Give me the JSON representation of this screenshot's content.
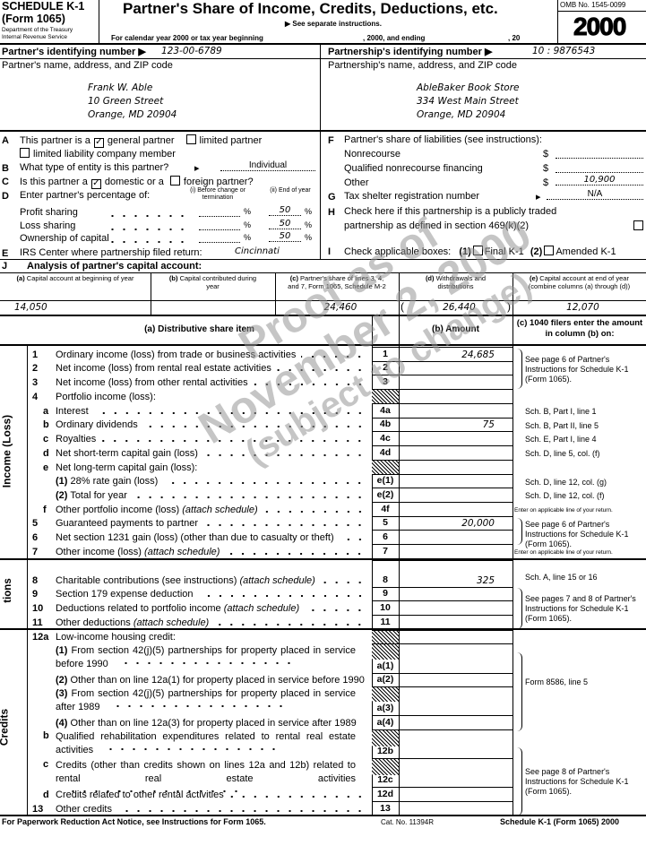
{
  "header": {
    "schedule": "SCHEDULE K-1",
    "form": "(Form 1065)",
    "dept1": "Department of the Treasury",
    "dept2": "Internal Revenue Service",
    "title": "Partner's Share of Income, Credits, Deductions, etc.",
    "see_instructions": "▶ See separate instructions.",
    "calendar_year": "For calendar year 2000 or tax year beginning",
    "and_ending": ", 2000, and ending",
    "year_suffix": ", 20",
    "omb": "OMB No. 1545-0099",
    "year": "2000"
  },
  "ids": {
    "partner_label": "Partner's identifying number ▶",
    "partner_value": "123-00-6789",
    "partnership_label": "Partnership's identifying number ▶",
    "partnership_value": "10 : 9876543"
  },
  "partner": {
    "label": "Partner's name, address, and ZIP code",
    "name": "Frank W. Able",
    "street": "10 Green Street",
    "city": "Orange, MD 20904"
  },
  "partnership": {
    "label": "Partnership's name, address, and ZIP code",
    "name": "AbleBaker Book Store",
    "street": "334 West Main Street",
    "city": "Orange, MD 20904"
  },
  "left_items": {
    "A_letter": "A",
    "A_text": "This partner is a",
    "A_general": "general partner",
    "A_general_checked": true,
    "A_limited": "limited partner",
    "A_llc": "limited liability company member",
    "B_letter": "B",
    "B_text": "What type of entity is this partner?",
    "B_value": "Individual",
    "C_letter": "C",
    "C_text": "Is this partner a",
    "C_domestic": "domestic or a",
    "C_domestic_checked": true,
    "C_foreign": "foreign partner?",
    "D_letter": "D",
    "D_text": "Enter partner's percentage of:",
    "D_col1": "(i) Before change or termination",
    "D_col2": "(ii) End of year",
    "D_profit": "Profit sharing",
    "D_profit_value": "50",
    "D_loss": "Loss sharing",
    "D_loss_value": "50",
    "D_ownership": "Ownership of capital",
    "D_ownership_value": "50",
    "pct": "%",
    "E_letter": "E",
    "E_text": "IRS Center where partnership filed return:",
    "E_value": "Cincinnati"
  },
  "right_items": {
    "F_letter": "F",
    "F_text": "Partner's share of liabilities (see instructions):",
    "F_nonrecourse": "Nonrecourse",
    "F_qualified": "Qualified nonrecourse financing",
    "F_other": "Other",
    "F_other_value": "10,900",
    "dollar": "$",
    "G_letter": "G",
    "G_text": "Tax shelter registration number",
    "G_value": "N/A",
    "H_letter": "H",
    "H_text1": "Check here if this partnership is a publicly traded",
    "H_text2": "partnership as defined in section 469(k)(2)",
    "I_letter": "I",
    "I_text": "Check applicable boxes:",
    "I_1": "(1)",
    "I_final": "Final K-1",
    "I_2": "(2)",
    "I_amended": "Amended K-1"
  },
  "capital": {
    "letter": "J",
    "title": "Analysis of partner's capital account:",
    "headers": [
      {
        "tag": "(a)",
        "text": "Capital account at beginning of year"
      },
      {
        "tag": "(b)",
        "text": "Capital contributed during year"
      },
      {
        "tag": "(c)",
        "text": "Partner's share of lines 3, 4, and 7, Form 1065, Schedule M-2"
      },
      {
        "tag": "(d)",
        "text": "Withdrawals and distributions"
      },
      {
        "tag": "(e)",
        "text": "Capital account at end of year (combine columns (a) through (d))"
      }
    ],
    "values": [
      "14,050",
      "",
      "24,460",
      "26,440",
      "12,070"
    ]
  },
  "columns": {
    "a": "(a) Distributive share item",
    "b": "(b) Amount",
    "c": "(c) 1040 filers enter the amount in column (b) on:"
  },
  "sections": {
    "income": "Income (Loss)",
    "deductions": "Deduc-tions",
    "credits": "Credits"
  },
  "income_rows": [
    {
      "num": "1",
      "text": "Ordinary income (loss) from trade or business activities",
      "box": "1",
      "amount": "24,685"
    },
    {
      "num": "2",
      "text": "Net income (loss) from rental real estate activities",
      "box": "2"
    },
    {
      "num": "3",
      "text": "Net income (loss) from other rental activities",
      "box": "3"
    },
    {
      "num": "4",
      "text": "Portfolio income (loss):",
      "shaded": true,
      "nodots": true
    },
    {
      "letter": "a",
      "text": "Interest",
      "box": "4a"
    },
    {
      "letter": "b",
      "text": "Ordinary dividends",
      "box": "4b",
      "amount": "75"
    },
    {
      "letter": "c",
      "text": "Royalties",
      "box": "4c"
    },
    {
      "letter": "d",
      "text": "Net short-term capital gain (loss)",
      "box": "4d"
    },
    {
      "letter": "e",
      "text": "Net long-term capital gain (loss):",
      "shaded": true,
      "nodots": true
    },
    {
      "prefix": "(1)",
      "text": "28% rate gain (loss)",
      "box": "e(1)"
    },
    {
      "prefix": "(2)",
      "text": "Total for year",
      "box": "e(2)"
    },
    {
      "letter": "f",
      "text": "Other portfolio income (loss)",
      "italic": "(attach schedule)",
      "box": "4f"
    },
    {
      "num": "5",
      "text": "Guaranteed payments to partner",
      "box": "5",
      "amount": "20,000"
    },
    {
      "num": "6",
      "text": "Net section 1231 gain (loss) (other than due to casualty or theft)",
      "box": "6"
    },
    {
      "num": "7",
      "text": "Other income (loss)",
      "italic": "(attach schedule)",
      "box": "7"
    }
  ],
  "income_notes": [
    "See page 6 of Partner's Instructions for Schedule K-1 (Form 1065).",
    "Sch. B, Part I, line 1",
    "Sch. B, Part II, line 5",
    "Sch. E, Part I, line 4",
    "Sch. D, line 5, col. (f)",
    "Sch. D, line 12, col. (g)",
    "Sch. D, line 12, col. (f)",
    "Enter on applicable line of your return.",
    "See page 6 of Partner's Instructions for Schedule K-1 (Form 1065).",
    "Enter on applicable line of your return."
  ],
  "deduction_rows": [
    {
      "num": "8",
      "text": "Charitable contributions (see instructions)",
      "italic": "(attach schedule)",
      "box": "8",
      "amount": "325"
    },
    {
      "num": "9",
      "text": "Section 179 expense deduction",
      "box": "9"
    },
    {
      "num": "10",
      "text": "Deductions related to portfolio income",
      "italic": "(attach schedule)",
      "box": "10"
    },
    {
      "num": "11",
      "text": "Other deductions",
      "italic": "(attach schedule)",
      "box": "11"
    }
  ],
  "deduction_notes": [
    "Sch. A, line 15 or 16",
    "See pages 7 and 8 of Partner's Instructions for Schedule K-1 (Form 1065)."
  ],
  "credit_rows": [
    {
      "num": "12a",
      "text": "Low-income housing credit:",
      "nodots": true
    },
    {
      "prefix": "(1)",
      "text": "From section 42(j)(5) partnerships for property placed in service before 1990",
      "box": "a(1)"
    },
    {
      "prefix": "(2)",
      "text": "Other than on line 12a(1) for property placed in service before 1990",
      "box": "a(2)",
      "nodots": true
    },
    {
      "prefix": "(3)",
      "text": "From section 42(j)(5) partnerships for property placed in service after 1989",
      "box": "a(3)"
    },
    {
      "prefix": "(4)",
      "text": "Other than on line 12a(3) for property placed in service after 1989",
      "box": "a(4)",
      "nodots": true
    },
    {
      "letter": "b",
      "text": "Qualified rehabilitation expenditures related to rental real estate activities",
      "box": "12b"
    },
    {
      "letter": "c",
      "text": "Credits (other than credits shown on lines 12a and 12b) related to rental real estate activities",
      "box": "12c"
    },
    {
      "letter": "d",
      "text": "Credits related to other rental activities",
      "box": "12d"
    },
    {
      "num": "13",
      "text": "Other credits",
      "box": "13"
    }
  ],
  "credit_notes": [
    "Form 8586, line 5",
    "See page 8 of Partner's Instructions for Schedule K-1 (Form 1065)."
  ],
  "footer": {
    "paperwork": "For Paperwork Reduction Act Notice, see Instructions for Form 1065.",
    "cat": "Cat. No. 11394R",
    "form_id": "Schedule K-1 (Form 1065) 2000"
  },
  "watermark": {
    "line1": "Proof as of",
    "line2": "November 2, 2000",
    "line3": "(subject to change)"
  }
}
